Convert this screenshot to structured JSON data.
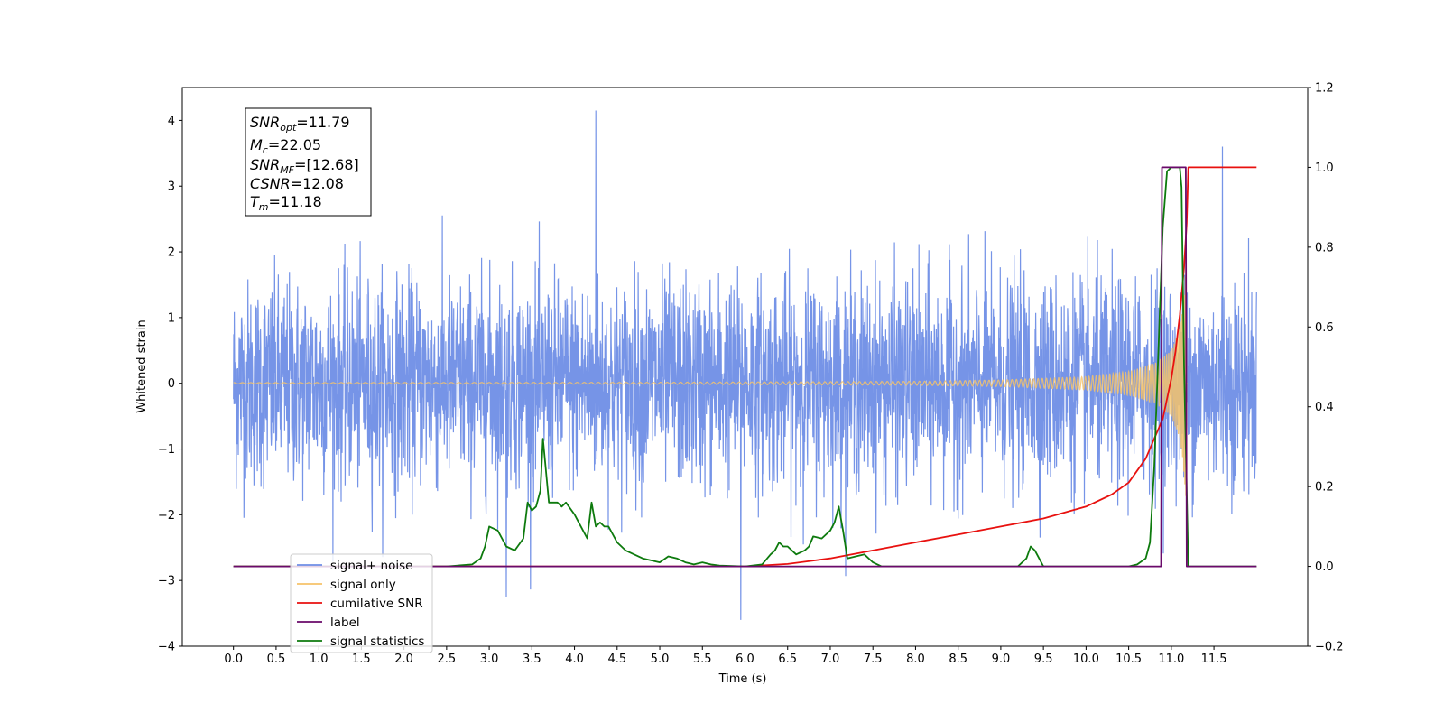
{
  "chart_data": {
    "type": "line",
    "xlabel": "Time (s)",
    "ylabel": "Whitened strain",
    "xlim": [
      -0.6,
      12.6
    ],
    "ylim": [
      -4,
      4.5
    ],
    "y2lim": [
      -0.2,
      1.2
    ],
    "x_ticks": [
      "0.0",
      "0.5",
      "1.0",
      "1.5",
      "2.0",
      "2.5",
      "3.0",
      "3.5",
      "4.0",
      "4.5",
      "5.0",
      "5.5",
      "6.0",
      "6.5",
      "7.0",
      "7.5",
      "8.0",
      "8.5",
      "9.0",
      "9.5",
      "10.0",
      "10.5",
      "11.0",
      "11.5"
    ],
    "y_ticks": [
      "-4",
      "-3",
      "-2",
      "-1",
      "0",
      "1",
      "2",
      "3",
      "4"
    ],
    "y2_ticks": [
      "-0.2",
      "0.0",
      "0.2",
      "0.4",
      "0.6",
      "0.8",
      "1.0",
      "1.2"
    ],
    "legend_placement": "lower-left",
    "grid": false,
    "info_box": {
      "lines": [
        {
          "sym": "SNR",
          "sub": "opt",
          "val": "=11.79"
        },
        {
          "sym": "M",
          "sub": "c",
          "val": "=22.05"
        },
        {
          "sym": "SNR",
          "sub": "MF",
          "val": "=[12.68]"
        },
        {
          "sym": "CSNR",
          "sub": "",
          "val": "=12.08"
        },
        {
          "sym": "T",
          "sub": "m",
          "val": "=11.18"
        }
      ]
    },
    "series": [
      {
        "name": "signal+ noise",
        "color": "#6f8ee6",
        "axis": "left",
        "description_envelope": {
          "x_range": [
            0,
            12
          ],
          "typical_band": [
            -1.6,
            1.6
          ],
          "max_spikes": [
            [
              4.25,
              4.15
            ],
            [
              11.6,
              3.6
            ],
            [
              5.95,
              -3.6
            ],
            [
              3.2,
              -3.25
            ]
          ]
        }
      },
      {
        "name": "signal only",
        "color": "#f6c36a",
        "axis": "left",
        "envelope": {
          "x": [
            0,
            5,
            8,
            9,
            10,
            10.5,
            10.8,
            11.0,
            11.1,
            11.15,
            11.18
          ],
          "amp": [
            0.01,
            0.015,
            0.03,
            0.05,
            0.1,
            0.18,
            0.3,
            0.5,
            0.85,
            1.4,
            1.9
          ]
        }
      },
      {
        "name": "cumilative SNR",
        "color": "#e8110f",
        "axis": "right",
        "x": [
          0,
          6.0,
          6.5,
          7.0,
          7.5,
          8.0,
          8.5,
          9.0,
          9.5,
          10.0,
          10.3,
          10.5,
          10.7,
          10.9,
          11.0,
          11.05,
          11.1,
          11.15,
          11.18,
          11.2,
          12.0
        ],
        "y": [
          0,
          0,
          0.006,
          0.02,
          0.04,
          0.06,
          0.08,
          0.1,
          0.12,
          0.15,
          0.18,
          0.21,
          0.27,
          0.37,
          0.47,
          0.54,
          0.63,
          0.75,
          0.86,
          1.0,
          1.0
        ]
      },
      {
        "name": "label",
        "color": "#6a0a6a",
        "axis": "right",
        "x": [
          0,
          10.88,
          10.89,
          11.17,
          11.18,
          12.0
        ],
        "y": [
          0,
          0,
          1.0,
          1.0,
          0,
          0
        ]
      },
      {
        "name": "signal statistics",
        "color": "#0d7a0d",
        "axis": "right",
        "x": [
          0,
          2.5,
          2.8,
          2.9,
          2.95,
          3.0,
          3.1,
          3.2,
          3.3,
          3.4,
          3.45,
          3.5,
          3.55,
          3.6,
          3.63,
          3.7,
          3.8,
          3.85,
          3.9,
          4.0,
          4.1,
          4.15,
          4.2,
          4.25,
          4.3,
          4.35,
          4.4,
          4.5,
          4.6,
          4.8,
          5.0,
          5.1,
          5.2,
          5.3,
          5.4,
          5.5,
          5.6,
          5.7,
          6.0,
          6.2,
          6.3,
          6.35,
          6.4,
          6.45,
          6.5,
          6.55,
          6.6,
          6.7,
          6.75,
          6.8,
          6.9,
          7.0,
          7.05,
          7.1,
          7.15,
          7.2,
          7.3,
          7.4,
          7.5,
          7.6,
          7.8,
          9.2,
          9.3,
          9.35,
          9.4,
          9.5,
          10.5,
          10.6,
          10.7,
          10.75,
          10.8,
          10.85,
          10.9,
          10.95,
          11.0,
          11.1,
          11.12,
          11.15,
          11.2,
          11.3,
          12.0
        ],
        "y": [
          0,
          0,
          0.005,
          0.02,
          0.05,
          0.1,
          0.09,
          0.05,
          0.04,
          0.07,
          0.16,
          0.14,
          0.15,
          0.19,
          0.32,
          0.16,
          0.16,
          0.15,
          0.16,
          0.13,
          0.09,
          0.07,
          0.16,
          0.1,
          0.11,
          0.1,
          0.1,
          0.06,
          0.04,
          0.02,
          0.01,
          0.025,
          0.02,
          0.01,
          0.005,
          0.01,
          0.005,
          0.002,
          0.0,
          0.005,
          0.03,
          0.04,
          0.06,
          0.05,
          0.05,
          0.04,
          0.03,
          0.04,
          0.05,
          0.075,
          0.07,
          0.09,
          0.11,
          0.15,
          0.09,
          0.02,
          0.025,
          0.03,
          0.01,
          0.0,
          0.0,
          0.0,
          0.02,
          0.05,
          0.04,
          0.0,
          0.0,
          0.005,
          0.02,
          0.06,
          0.25,
          0.55,
          0.85,
          0.99,
          1.0,
          1.0,
          0.95,
          0.5,
          0.0,
          0.0,
          0.0
        ]
      }
    ]
  }
}
